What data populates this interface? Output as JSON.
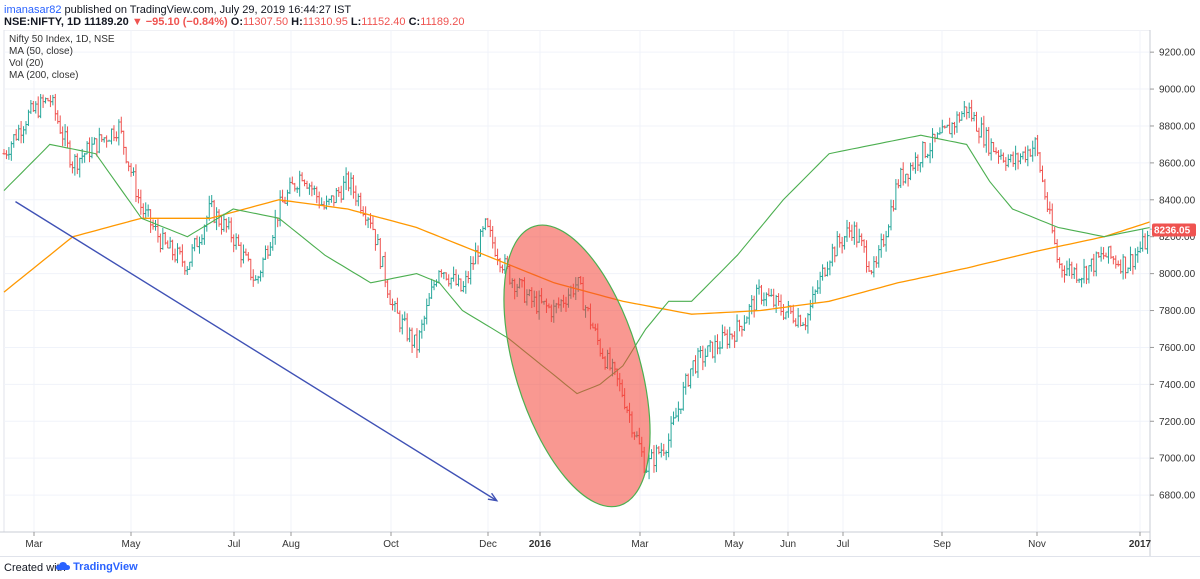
{
  "header": {
    "author": "imanasar82",
    "published_text": "published on TradingView.com, July 29, 2019 16:44:27 IST",
    "symbol": "NSE:NIFTY, 1D",
    "last": "11189.20",
    "change": "▼ −95.10 (−0.84%)",
    "open_label": "O:",
    "open": "11307.50",
    "high_label": "H:",
    "high": "11310.95",
    "low_label": "L:",
    "low": "11152.40",
    "close_label": "C:",
    "close": "11189.20"
  },
  "legend": {
    "title": "Nifty 50 Index, 1D, NSE",
    "lines": [
      "MA (50, close)",
      "Vol (20)",
      "MA (200, close)"
    ]
  },
  "price_label": "8236.05",
  "footer": {
    "created_with": "Created with",
    "brand": "TradingView"
  },
  "colors": {
    "up": "#26a69a",
    "down": "#ef5350",
    "ma50": "#4caf50",
    "ma200": "#ff9800",
    "trendline": "#3f51b5",
    "ellipse_fill": "#f44336",
    "ellipse_stroke": "#4caf50"
  },
  "chart_data": {
    "type": "line",
    "title": "Nifty 50 Index, 1D, NSE",
    "y_ticks": [
      "6800.00",
      "7000.00",
      "7200.00",
      "7400.00",
      "7600.00",
      "7800.00",
      "8000.00",
      "8200.00",
      "8400.00",
      "8600.00",
      "8800.00",
      "9000.00",
      "9200.00"
    ],
    "ylim": [
      6600,
      9320
    ],
    "x_ticks": [
      "Mar",
      "May",
      "Jul",
      "Aug",
      "Oct",
      "Dec",
      "2016",
      "Mar",
      "May",
      "Jun",
      "Jul",
      "Sep",
      "Nov",
      "2017"
    ],
    "x_tick_bold": [
      "2016",
      "2017"
    ],
    "price": {
      "name": "NIFTY",
      "x": [
        0,
        2,
        4,
        6,
        8,
        10,
        12,
        14,
        16,
        18,
        20,
        22,
        24,
        26,
        28,
        30,
        32,
        34,
        36,
        38,
        40,
        42,
        44,
        46,
        48,
        50,
        52,
        54,
        56,
        58,
        60,
        62,
        64,
        66,
        68,
        70,
        72,
        74,
        76,
        78,
        80,
        82,
        84,
        86,
        88,
        90,
        92,
        94,
        96,
        98,
        100
      ],
      "values": [
        8650,
        8850,
        8950,
        8600,
        8700,
        8800,
        8350,
        8150,
        8050,
        8350,
        8200,
        7950,
        8350,
        8550,
        8350,
        8500,
        8300,
        7800,
        7600,
        8050,
        7900,
        8250,
        8000,
        7850,
        7800,
        7950,
        7600,
        7350,
        6950,
        7100,
        7500,
        7600,
        7700,
        7900,
        7800,
        7750,
        8100,
        8250,
        8000,
        8500,
        8650,
        8750,
        8900,
        8700,
        8600,
        8700,
        8050,
        8000,
        8100,
        8050,
        8200
      ]
    },
    "ma50": {
      "name": "MA (50, close)",
      "x": [
        0,
        4,
        8,
        12,
        16,
        20,
        24,
        28,
        32,
        36,
        38,
        40,
        44,
        48,
        50,
        52,
        54,
        56,
        58,
        60,
        64,
        68,
        72,
        76,
        80,
        84,
        86,
        88,
        92,
        96,
        100
      ],
      "values": [
        8450,
        8700,
        8650,
        8300,
        8200,
        8350,
        8300,
        8100,
        7950,
        8000,
        7950,
        7800,
        7650,
        7450,
        7350,
        7400,
        7500,
        7700,
        7850,
        7850,
        8100,
        8400,
        8650,
        8700,
        8750,
        8700,
        8500,
        8350,
        8250,
        8200,
        8250
      ]
    },
    "ma200": {
      "name": "MA (200, close)",
      "x": [
        0,
        6,
        12,
        18,
        24,
        30,
        36,
        42,
        48,
        54,
        60,
        66,
        72,
        78,
        84,
        90,
        96,
        100
      ],
      "values": [
        7900,
        8200,
        8300,
        8300,
        8400,
        8350,
        8250,
        8100,
        7950,
        7850,
        7780,
        7800,
        7850,
        7950,
        8030,
        8120,
        8200,
        8280
      ]
    },
    "annotations": [
      {
        "type": "trendline",
        "from": [
          1,
          8390
        ],
        "to": [
          43,
          6770
        ]
      },
      {
        "type": "ellipse",
        "center": [
          50,
          7500
        ]
      }
    ]
  }
}
